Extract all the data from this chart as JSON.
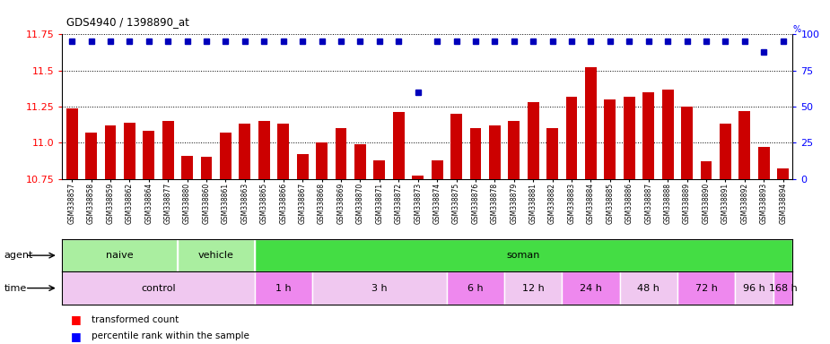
{
  "title": "GDS4940 / 1398890_at",
  "x_labels": [
    "GSM338857",
    "GSM338858",
    "GSM338859",
    "GSM338862",
    "GSM338864",
    "GSM338877",
    "GSM338880",
    "GSM338860",
    "GSM338861",
    "GSM338863",
    "GSM338865",
    "GSM338866",
    "GSM338867",
    "GSM338868",
    "GSM338869",
    "GSM338870",
    "GSM338871",
    "GSM338872",
    "GSM338873",
    "GSM338874",
    "GSM338875",
    "GSM338876",
    "GSM338878",
    "GSM338879",
    "GSM338881",
    "GSM338882",
    "GSM338883",
    "GSM338884",
    "GSM338885",
    "GSM338886",
    "GSM338887",
    "GSM338888",
    "GSM338889",
    "GSM338890",
    "GSM338891",
    "GSM338892",
    "GSM338893",
    "GSM338894"
  ],
  "bar_values": [
    11.24,
    11.07,
    11.12,
    11.14,
    11.08,
    11.15,
    10.91,
    10.9,
    11.07,
    11.13,
    11.15,
    11.13,
    10.92,
    11.0,
    11.1,
    10.99,
    10.88,
    11.21,
    10.77,
    10.88,
    11.2,
    11.1,
    11.12,
    11.15,
    11.28,
    11.1,
    11.32,
    11.52,
    11.3,
    11.32,
    11.35,
    11.37,
    11.25,
    10.87,
    11.13,
    11.22,
    10.97,
    10.82
  ],
  "percentile_values": [
    95,
    95,
    95,
    95,
    95,
    95,
    95,
    95,
    95,
    95,
    95,
    95,
    95,
    95,
    95,
    95,
    95,
    95,
    60,
    95,
    95,
    95,
    95,
    95,
    95,
    95,
    95,
    95,
    95,
    95,
    95,
    95,
    95,
    95,
    95,
    95,
    88,
    95
  ],
  "bar_color": "#cc0000",
  "percentile_color": "#0000bb",
  "ylim_left": [
    10.75,
    11.75
  ],
  "ylim_right": [
    0,
    100
  ],
  "yticks_left": [
    10.75,
    11.0,
    11.25,
    11.5,
    11.75
  ],
  "yticks_right": [
    0,
    25,
    50,
    75,
    100
  ],
  "agent_groups": [
    {
      "label": "naive",
      "start": 0,
      "end": 5,
      "color": "#aaeea0"
    },
    {
      "label": "vehicle",
      "start": 6,
      "end": 9,
      "color": "#aaeea0"
    },
    {
      "label": "soman",
      "start": 10,
      "end": 37,
      "color": "#44dd44"
    }
  ],
  "time_groups": [
    {
      "label": "control",
      "start": 0,
      "end": 9,
      "color": "#f0c8f0"
    },
    {
      "label": "1 h",
      "start": 10,
      "end": 12,
      "color": "#ee88ee"
    },
    {
      "label": "3 h",
      "start": 13,
      "end": 19,
      "color": "#f0c8f0"
    },
    {
      "label": "6 h",
      "start": 20,
      "end": 22,
      "color": "#ee88ee"
    },
    {
      "label": "12 h",
      "start": 23,
      "end": 25,
      "color": "#f0c8f0"
    },
    {
      "label": "24 h",
      "start": 26,
      "end": 28,
      "color": "#ee88ee"
    },
    {
      "label": "48 h",
      "start": 29,
      "end": 31,
      "color": "#f0c8f0"
    },
    {
      "label": "72 h",
      "start": 32,
      "end": 34,
      "color": "#ee88ee"
    },
    {
      "label": "96 h",
      "start": 35,
      "end": 36,
      "color": "#f0c8f0"
    },
    {
      "label": "168 h",
      "start": 37,
      "end": 37,
      "color": "#ee88ee"
    }
  ],
  "background_color": "#ffffff",
  "plot_bg_color": "#f0f0f0",
  "n_bars": 38
}
